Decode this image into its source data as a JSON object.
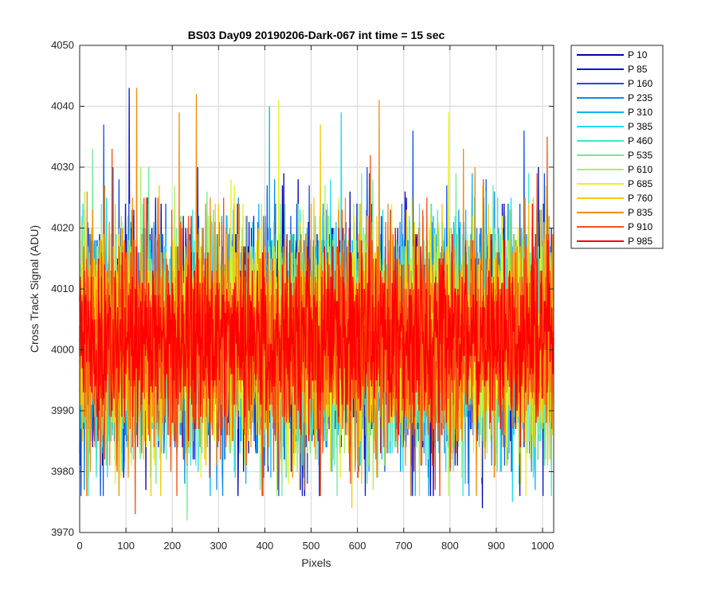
{
  "chart_data": {
    "type": "line",
    "title": "BS03 Day09 20190206-Dark-067 int time = 15 sec",
    "xlabel": "Pixels",
    "ylabel": "Cross Track Signal (ADU)",
    "xlim": [
      0,
      1024
    ],
    "ylim": [
      3970,
      4050
    ],
    "xticks": [
      0,
      100,
      200,
      300,
      400,
      500,
      600,
      700,
      800,
      900,
      1000
    ],
    "yticks": [
      3970,
      3980,
      3990,
      4000,
      4010,
      4020,
      4030,
      4040,
      4050
    ],
    "grid": true,
    "legend_position": "outside-top-right",
    "series": [
      {
        "name": "P 10",
        "color": "#0000b4",
        "mean": 4002,
        "noise": 9
      },
      {
        "name": "P 85",
        "color": "#0a14d2",
        "mean": 4002,
        "noise": 9
      },
      {
        "name": "P 160",
        "color": "#0a50e6",
        "mean": 4002,
        "noise": 9
      },
      {
        "name": "P 235",
        "color": "#0a8cf0",
        "mean": 4002,
        "noise": 9
      },
      {
        "name": "P 310",
        "color": "#0ab4f5",
        "mean": 4002,
        "noise": 9
      },
      {
        "name": "P 385",
        "color": "#19dcf0",
        "mean": 4002,
        "noise": 9
      },
      {
        "name": "P 460",
        "color": "#3ce6cd",
        "mean": 4002,
        "noise": 9
      },
      {
        "name": "P 535",
        "color": "#6eeb9b",
        "mean": 4002,
        "noise": 9
      },
      {
        "name": "P 610",
        "color": "#aaf05a",
        "mean": 4002,
        "noise": 9
      },
      {
        "name": "P 685",
        "color": "#e6f01e",
        "mean": 4002,
        "noise": 9
      },
      {
        "name": "P 760",
        "color": "#f5c80a",
        "mean": 4002,
        "noise": 9
      },
      {
        "name": "P 835",
        "color": "#f58c0a",
        "mean": 4002,
        "noise": 9
      },
      {
        "name": "P 910",
        "color": "#f55014",
        "mean": 4002,
        "noise": 9
      },
      {
        "name": "P 985",
        "color": "#ff0000",
        "mean": 4002,
        "noise": 7
      }
    ],
    "notable_peaks": [
      {
        "series": "P 85",
        "x": 107,
        "y": 4043
      },
      {
        "series": "P 835",
        "x": 123,
        "y": 4043
      },
      {
        "series": "P 835",
        "x": 252,
        "y": 4042
      },
      {
        "series": "P 685",
        "x": 430,
        "y": 4041
      },
      {
        "series": "P 835",
        "x": 647,
        "y": 4041
      },
      {
        "series": "P 310",
        "x": 410,
        "y": 4040
      },
      {
        "series": "P 685",
        "x": 797,
        "y": 4039
      },
      {
        "series": "P 835",
        "x": 215,
        "y": 4039
      },
      {
        "series": "P 385",
        "x": 565,
        "y": 4039
      },
      {
        "series": "P 160",
        "x": 52,
        "y": 4037
      },
      {
        "series": "P 760",
        "x": 520,
        "y": 4037
      },
      {
        "series": "P 160",
        "x": 960,
        "y": 4036
      },
      {
        "series": "P 160",
        "x": 720,
        "y": 4036
      },
      {
        "series": "P 910",
        "x": 1010,
        "y": 4035
      },
      {
        "series": "P 535",
        "x": 28,
        "y": 4033
      },
      {
        "series": "P 535",
        "x": 232,
        "y": 3972
      },
      {
        "series": "P 910",
        "x": 120,
        "y": 3973
      },
      {
        "series": "P 10",
        "x": 870,
        "y": 3974
      },
      {
        "series": "P 760",
        "x": 588,
        "y": 3974
      },
      {
        "series": "P 385",
        "x": 935,
        "y": 3975
      }
    ]
  }
}
